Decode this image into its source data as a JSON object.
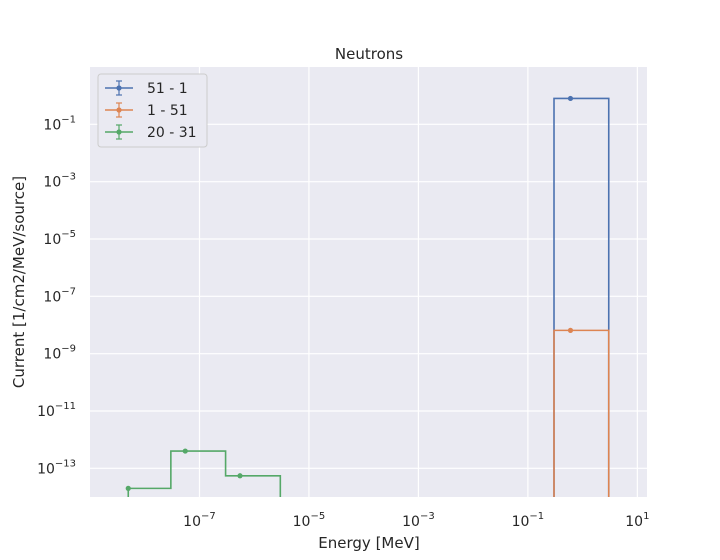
{
  "chart_data": {
    "type": "line",
    "title": "Neutrons",
    "xlabel": "Energy [MeV]",
    "ylabel": "Current [1/cm2/MeV/source]",
    "x_scale": "log",
    "y_scale": "log",
    "xlim": [
      1e-09,
      15
    ],
    "ylim": [
      1e-14,
      10
    ],
    "x_ticks": [
      1e-07,
      1e-05,
      0.001,
      0.1,
      10
    ],
    "x_tick_labels": [
      {
        "base": "10",
        "exp": "−7"
      },
      {
        "base": "10",
        "exp": "−5"
      },
      {
        "base": "10",
        "exp": "−3"
      },
      {
        "base": "10",
        "exp": "−1"
      },
      {
        "base": "10",
        "exp": "1"
      }
    ],
    "y_ticks": [
      1e-13,
      1e-11,
      1e-09,
      1e-07,
      1e-05,
      0.001,
      0.1
    ],
    "y_tick_labels": [
      {
        "base": "10",
        "exp": "−13"
      },
      {
        "base": "10",
        "exp": "−11"
      },
      {
        "base": "10",
        "exp": "−9"
      },
      {
        "base": "10",
        "exp": "−7"
      },
      {
        "base": "10",
        "exp": "−5"
      },
      {
        "base": "10",
        "exp": "−3"
      },
      {
        "base": "10",
        "exp": "−1"
      }
    ],
    "grid": true,
    "legend_position": "top-left",
    "series": [
      {
        "name": "51 - 1",
        "color": "#4c72b0",
        "bin_edges": [
          0.3,
          3
        ],
        "values": [
          0.8
        ],
        "points": [
          {
            "x": 0.6,
            "y": 0.8
          }
        ]
      },
      {
        "name": "1 - 51",
        "color": "#dd8452",
        "bin_edges": [
          0.3,
          3
        ],
        "values": [
          6.5e-09
        ],
        "points": [
          {
            "x": 0.6,
            "y": 6.5e-09
          }
        ]
      },
      {
        "name": "20 - 31",
        "color": "#55a868",
        "bin_edges": [
          5e-09,
          3e-08,
          3e-07,
          3e-06
        ],
        "values": [
          2e-14,
          4e-13,
          5.5e-14
        ],
        "points": [
          {
            "x": 5e-09,
            "y": 2e-14
          },
          {
            "x": 5.5e-08,
            "y": 4e-13
          },
          {
            "x": 5.5e-07,
            "y": 5.5e-14
          }
        ]
      }
    ]
  }
}
